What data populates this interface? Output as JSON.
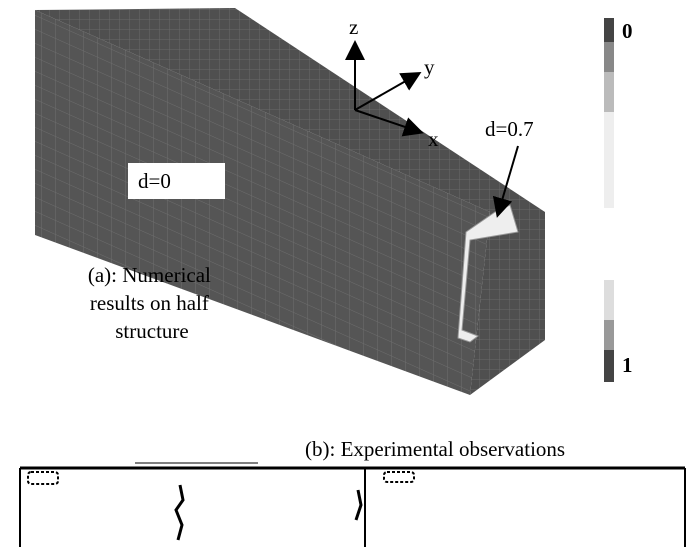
{
  "figure": {
    "panel_a": {
      "axis_z": "z",
      "axis_y": "y",
      "axis_x": "x",
      "label_d0": "d=0",
      "label_d07": "d=0.7",
      "caption": [
        "(a): Numerical",
        "results on half",
        "structure"
      ],
      "scale_top": "0",
      "scale_bottom": "1"
    },
    "panel_b": {
      "caption": "(b): Experimental observations"
    }
  }
}
